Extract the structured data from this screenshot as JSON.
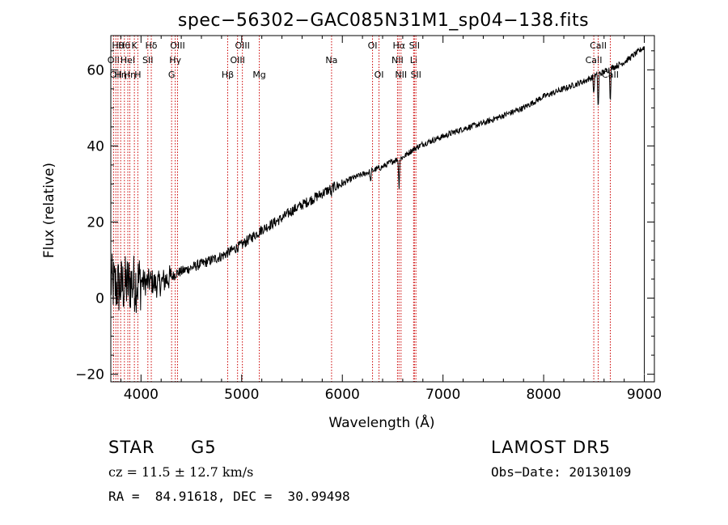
{
  "chart_data": {
    "type": "line",
    "title": "spec−56302−GAC085N31M1_sp04−138.fits",
    "xlabel": "Wavelength (Å)",
    "ylabel": "Flux (relative)",
    "xlim": [
      3700,
      9100
    ],
    "ylim": [
      -22,
      69
    ],
    "xticks": [
      4000,
      5000,
      6000,
      7000,
      8000,
      9000
    ],
    "yticks": [
      -20,
      0,
      20,
      40,
      60
    ],
    "line_color": "#000000",
    "marker_color": "#cc0000",
    "continuum": [
      [
        3700,
        4
      ],
      [
        3750,
        3
      ],
      [
        3800,
        3
      ],
      [
        3850,
        3.5
      ],
      [
        3900,
        4
      ],
      [
        3950,
        4
      ],
      [
        4000,
        4.5
      ],
      [
        4050,
        4
      ],
      [
        4100,
        4.5
      ],
      [
        4150,
        3.5
      ],
      [
        4200,
        4
      ],
      [
        4250,
        5
      ],
      [
        4300,
        5.5
      ],
      [
        4350,
        6.5
      ],
      [
        4400,
        7
      ],
      [
        4500,
        8
      ],
      [
        4600,
        9
      ],
      [
        4700,
        10
      ],
      [
        4800,
        11
      ],
      [
        4900,
        12.5
      ],
      [
        5000,
        14
      ],
      [
        5100,
        16
      ],
      [
        5200,
        18
      ],
      [
        5300,
        19.5
      ],
      [
        5400,
        21
      ],
      [
        5500,
        23
      ],
      [
        5600,
        24.5
      ],
      [
        5700,
        26
      ],
      [
        5800,
        27.5
      ],
      [
        5900,
        29
      ],
      [
        6000,
        30
      ],
      [
        6100,
        31.5
      ],
      [
        6200,
        32.5
      ],
      [
        6300,
        33.5
      ],
      [
        6400,
        34.5
      ],
      [
        6500,
        36
      ],
      [
        6600,
        37
      ],
      [
        6700,
        39
      ],
      [
        6800,
        40.5
      ],
      [
        6900,
        41.5
      ],
      [
        7000,
        42.5
      ],
      [
        7200,
        44.5
      ],
      [
        7400,
        46
      ],
      [
        7600,
        48
      ],
      [
        7800,
        50
      ],
      [
        8000,
        53
      ],
      [
        8200,
        55
      ],
      [
        8400,
        57
      ],
      [
        8600,
        59.5
      ],
      [
        8800,
        62
      ],
      [
        8950,
        65
      ],
      [
        9000,
        66
      ]
    ],
    "absorption_features": [
      {
        "wavelength": 5890,
        "depth": 2
      },
      {
        "wavelength": 6280,
        "depth": 3
      },
      {
        "wavelength": 6563,
        "depth": 8
      },
      {
        "wavelength": 8498,
        "depth": 5
      },
      {
        "wavelength": 8542,
        "depth": 10
      },
      {
        "wavelength": 8662,
        "depth": 9
      }
    ],
    "line_markers": [
      {
        "wavelength": 3727,
        "row": 1,
        "label": "OII"
      },
      {
        "wavelength": 3750,
        "row": 2,
        "label": "OII"
      },
      {
        "wavelength": 3771,
        "row": 0,
        "label": "Hθ"
      },
      {
        "wavelength": 3798,
        "row": 2,
        "label": "Hη"
      },
      {
        "wavelength": 3835,
        "row": 0,
        "label": "Hθ"
      },
      {
        "wavelength": 3869,
        "row": 1,
        "label": "HeI"
      },
      {
        "wavelength": 3889,
        "row": 2,
        "label": "Hη"
      },
      {
        "wavelength": 3934,
        "row": 0,
        "label": "K"
      },
      {
        "wavelength": 3968,
        "row": 2,
        "label": "H"
      },
      {
        "wavelength": 4068,
        "row": 1,
        "label": "SII"
      },
      {
        "wavelength": 4102,
        "row": 0,
        "label": "Hδ"
      },
      {
        "wavelength": 4304,
        "row": 2,
        "label": "G"
      },
      {
        "wavelength": 4340,
        "row": 1,
        "label": "Hγ"
      },
      {
        "wavelength": 4363,
        "row": 0,
        "label": "OIII"
      },
      {
        "wavelength": 4861,
        "row": 2,
        "label": "Hβ"
      },
      {
        "wavelength": 4959,
        "row": 1,
        "label": "OIII"
      },
      {
        "wavelength": 5007,
        "row": 0,
        "label": "OIII"
      },
      {
        "wavelength": 5175,
        "row": 2,
        "label": "Mg"
      },
      {
        "wavelength": 5893,
        "row": 1,
        "label": "Na"
      },
      {
        "wavelength": 6300,
        "row": 0,
        "label": "OI"
      },
      {
        "wavelength": 6364,
        "row": 2,
        "label": "OI"
      },
      {
        "wavelength": 6548,
        "row": 1,
        "label": "NII"
      },
      {
        "wavelength": 6563,
        "row": 0,
        "label": "Hα"
      },
      {
        "wavelength": 6583,
        "row": 2,
        "label": "NII"
      },
      {
        "wavelength": 6708,
        "row": 1,
        "label": "Li"
      },
      {
        "wavelength": 6716,
        "row": 0,
        "label": "SII"
      },
      {
        "wavelength": 6731,
        "row": 2,
        "label": "SII"
      },
      {
        "wavelength": 8498,
        "row": 1,
        "label": "CaII"
      },
      {
        "wavelength": 8542,
        "row": 0,
        "label": "CaII"
      },
      {
        "wavelength": 8662,
        "row": 2,
        "label": "CaII"
      }
    ]
  },
  "info": {
    "object_class": "STAR",
    "subclass": "G5",
    "survey": "LAMOST DR5",
    "redshift_line": "cz = 11.5 ± 12.7 km/s",
    "obs_date": "Obs−Date: 20130109",
    "coords": "RA =  84.91618, DEC =  30.99498"
  }
}
